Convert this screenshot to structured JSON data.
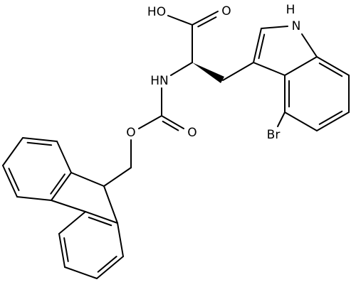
{
  "atoms": {
    "hydroxyl": "HO",
    "acid_carbonyl_oxygen": "O",
    "indole_hydrogen": "H",
    "indole_nitrogen": "N",
    "amide": "HN",
    "carbamate_carbonyl_oxygen": "O",
    "ester_oxygen": "O",
    "bromine": "Br"
  }
}
